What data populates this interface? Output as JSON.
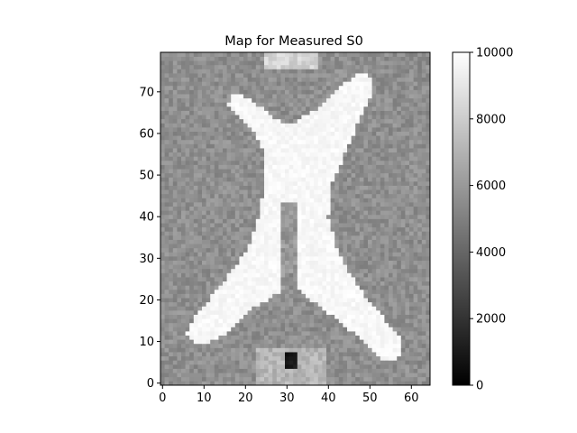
{
  "chart_data": {
    "type": "heatmap",
    "title": "Map for Measured S0",
    "xlabel": "",
    "ylabel": "",
    "grid": false,
    "colormap": "gray",
    "image_shape": [
      80,
      65
    ],
    "xlim": [
      -0.5,
      64.5
    ],
    "ylim": [
      -0.5,
      79.5
    ],
    "x_ticks": [
      0,
      10,
      20,
      30,
      40,
      50,
      60
    ],
    "y_ticks": [
      0,
      10,
      20,
      30,
      40,
      50,
      60,
      70
    ],
    "colorbar": {
      "range": [
        0,
        10000
      ],
      "ticks": [
        0,
        2000,
        4000,
        6000,
        8000,
        10000
      ],
      "tick_labels": [
        "0",
        "2000",
        "4000",
        "6000",
        "8000",
        "10000"
      ]
    },
    "description_values": {
      "background_tissue_intensity": 5600,
      "ventricle_intensity": 10000,
      "dark_spot_intensity": 500
    }
  },
  "colors": {
    "axis": "#000000",
    "background": "#ffffff"
  }
}
